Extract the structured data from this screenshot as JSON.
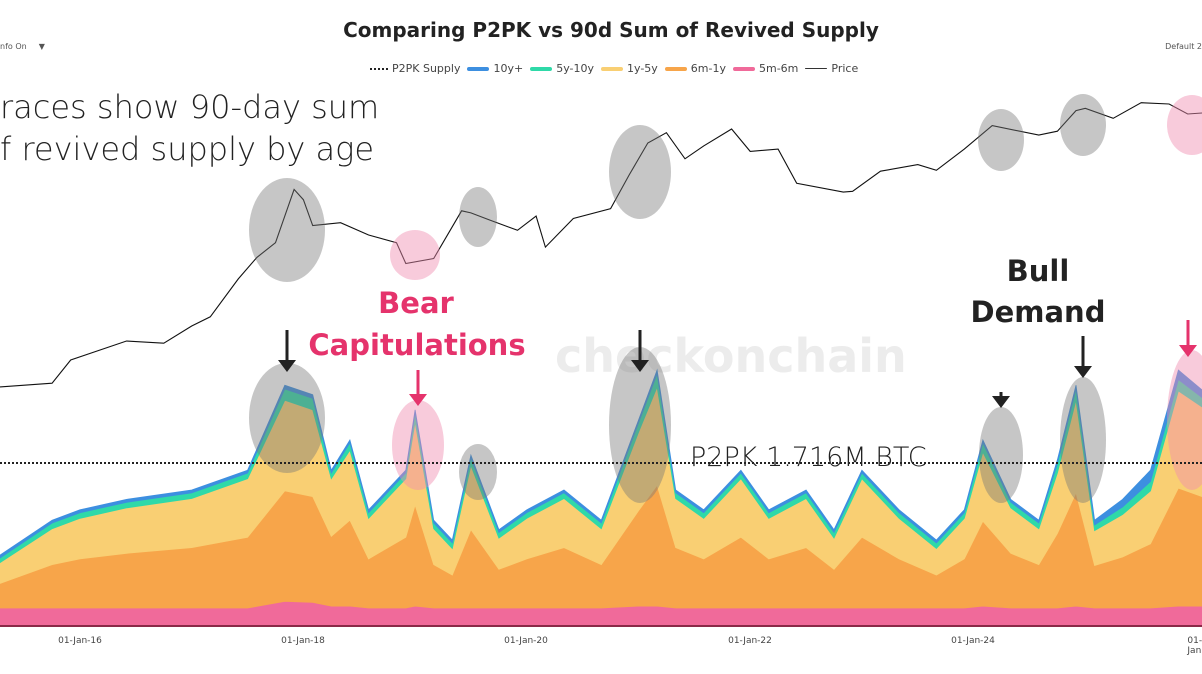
{
  "header": {
    "title": "Comparing P2PK vs 90d Sum of Revived Supply",
    "info_toggle": "nfo On",
    "info_arrow": "▼",
    "default_label": "Default 2"
  },
  "annotations": {
    "trace_line1": "races show 90-day sum",
    "trace_line2": "f revived supply by age",
    "bear1": "Bear",
    "bear2": "Capitulations",
    "bull1": "Bull",
    "bull2": "Demand",
    "p2pk": "P2PK 1.716M BTC",
    "watermark": "checkonchain"
  },
  "chart_data": {
    "type": "area",
    "title": "Comparing P2PK vs 90d Sum of Revived Supply",
    "legend_position": "top-center",
    "grid": false,
    "x_tick_labels": [
      "01-Jan-16",
      "01-Jan-18",
      "01-Jan-20",
      "01-Jan-22",
      "01-Jan-24",
      "01-Jan"
    ],
    "legend": [
      {
        "name": "P2PK Supply",
        "style": "dotted",
        "color": "#222222"
      },
      {
        "name": "10y+",
        "style": "area",
        "color": "#3d8fe0"
      },
      {
        "name": "5y-10y",
        "style": "area",
        "color": "#2fd9a8"
      },
      {
        "name": "1y-5y",
        "style": "area",
        "color": "#f9cf73"
      },
      {
        "name": "6m-1y",
        "style": "area",
        "color": "#f7a54a"
      },
      {
        "name": "5m-6m",
        "style": "area",
        "color": "#f06a9a"
      },
      {
        "name": "Price",
        "style": "line",
        "color": "#222222"
      }
    ],
    "p2pk_supply_btc": 1716000,
    "stack_unit": "M BTC",
    "dates": [
      "2015-04",
      "2015-10",
      "2016-01",
      "2016-06",
      "2017-01",
      "2017-07",
      "2017-11",
      "2018-02",
      "2018-04",
      "2018-06",
      "2018-08",
      "2018-12",
      "2019-01",
      "2019-03",
      "2019-05",
      "2019-07",
      "2019-10",
      "2020-01",
      "2020-05",
      "2020-09",
      "2021-01",
      "2021-03",
      "2021-05",
      "2021-08",
      "2021-12",
      "2022-03",
      "2022-07",
      "2022-10",
      "2023-01",
      "2023-05",
      "2023-09",
      "2023-12",
      "2024-02",
      "2024-05",
      "2024-08",
      "2024-10",
      "2024-12",
      "2025-02",
      "2025-05",
      "2025-08",
      "2025-11",
      "2026-01"
    ],
    "series": [
      {
        "name": "5m-6m",
        "color": "#f06a9a",
        "values": [
          0.18,
          0.18,
          0.18,
          0.18,
          0.18,
          0.18,
          0.25,
          0.24,
          0.2,
          0.2,
          0.18,
          0.18,
          0.2,
          0.18,
          0.18,
          0.18,
          0.18,
          0.18,
          0.18,
          0.18,
          0.2,
          0.2,
          0.18,
          0.18,
          0.18,
          0.18,
          0.18,
          0.18,
          0.18,
          0.18,
          0.18,
          0.18,
          0.2,
          0.18,
          0.18,
          0.18,
          0.2,
          0.18,
          0.18,
          0.18,
          0.2,
          0.2
        ]
      },
      {
        "name": "6m-1y",
        "color": "#f7a54a",
        "values": [
          0.26,
          0.46,
          0.52,
          0.58,
          0.64,
          0.75,
          1.17,
          1.12,
          0.74,
          0.91,
          0.52,
          0.75,
          1.07,
          0.46,
          0.35,
          0.83,
          0.41,
          0.52,
          0.64,
          0.46,
          1.01,
          1.28,
          0.64,
          0.52,
          0.75,
          0.52,
          0.64,
          0.41,
          0.75,
          0.52,
          0.35,
          0.52,
          0.9,
          0.58,
          0.46,
          0.79,
          1.2,
          0.45,
          0.54,
          0.68,
          1.25,
          1.16
        ]
      },
      {
        "name": "1y-5y",
        "color": "#f9cf73",
        "values": [
          0.22,
          0.38,
          0.43,
          0.48,
          0.52,
          0.62,
          0.96,
          0.92,
          0.61,
          0.74,
          0.43,
          0.62,
          0.88,
          0.38,
          0.28,
          0.68,
          0.33,
          0.43,
          0.52,
          0.38,
          0.83,
          1.04,
          0.52,
          0.43,
          0.62,
          0.43,
          0.52,
          0.33,
          0.62,
          0.43,
          0.28,
          0.43,
          0.73,
          0.48,
          0.38,
          0.64,
          0.98,
          0.37,
          0.45,
          0.56,
          1.03,
          0.95
        ]
      },
      {
        "name": "5y-10y",
        "color": "#2fd9a8",
        "values": [
          0.05,
          0.06,
          0.06,
          0.06,
          0.06,
          0.06,
          0.12,
          0.12,
          0.06,
          0.08,
          0.06,
          0.06,
          0.1,
          0.06,
          0.06,
          0.08,
          0.06,
          0.06,
          0.06,
          0.06,
          0.1,
          0.14,
          0.06,
          0.06,
          0.06,
          0.06,
          0.06,
          0.06,
          0.06,
          0.06,
          0.06,
          0.06,
          0.1,
          0.06,
          0.06,
          0.1,
          0.12,
          0.06,
          0.08,
          0.1,
          0.12,
          0.1
        ]
      },
      {
        "name": "10y+",
        "color": "#3d8fe0",
        "values": [
          0.03,
          0.03,
          0.03,
          0.03,
          0.03,
          0.03,
          0.04,
          0.04,
          0.03,
          0.03,
          0.03,
          0.03,
          0.03,
          0.03,
          0.03,
          0.03,
          0.03,
          0.03,
          0.03,
          0.03,
          0.03,
          0.04,
          0.03,
          0.03,
          0.03,
          0.03,
          0.03,
          0.03,
          0.03,
          0.03,
          0.03,
          0.03,
          0.03,
          0.03,
          0.03,
          0.04,
          0.04,
          0.05,
          0.08,
          0.12,
          0.1,
          0.08
        ]
      }
    ],
    "price": {
      "name": "Price",
      "scale": "log",
      "unit": "USD",
      "dates": [
        "2015-04",
        "2015-10",
        "2015-12",
        "2016-06",
        "2016-10",
        "2017-01",
        "2017-03",
        "2017-06",
        "2017-08",
        "2017-10",
        "2017-12",
        "2018-01",
        "2018-02",
        "2018-05",
        "2018-08",
        "2018-11",
        "2018-12",
        "2019-03",
        "2019-06",
        "2019-07",
        "2019-09",
        "2019-12",
        "2020-02",
        "2020-03",
        "2020-06",
        "2020-10",
        "2020-12",
        "2021-02",
        "2021-04",
        "2021-06",
        "2021-08",
        "2021-11",
        "2022-01",
        "2022-04",
        "2022-06",
        "2022-11",
        "2022-12",
        "2023-03",
        "2023-07",
        "2023-09",
        "2023-12",
        "2024-03",
        "2024-08",
        "2024-10",
        "2024-12",
        "2025-01",
        "2025-04",
        "2025-07",
        "2025-10",
        "2025-12",
        "2026-01"
      ],
      "values": [
        240,
        260,
        430,
        650,
        620,
        900,
        1100,
        2500,
        4000,
        5500,
        17500,
        14000,
        8000,
        8500,
        6500,
        5500,
        3500,
        3900,
        11000,
        10500,
        9000,
        7200,
        9800,
        5000,
        9300,
        11500,
        24000,
        48000,
        60000,
        34000,
        45000,
        65000,
        40000,
        42000,
        20000,
        16500,
        16800,
        26000,
        30000,
        26500,
        42000,
        70000,
        57000,
        62000,
        97000,
        102000,
        82000,
        115000,
        112000,
        90000,
        92000
      ]
    }
  }
}
